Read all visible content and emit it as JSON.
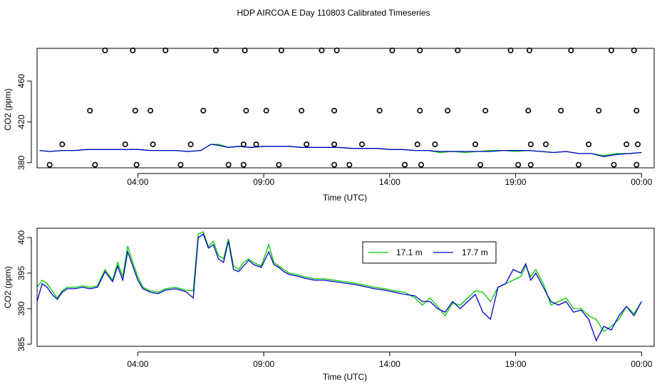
{
  "title": "HDP AIRCOA E  Day 110803  Calibrated Timeseries",
  "colors": {
    "series_17_1": "#00cc00",
    "series_17_7": "#0000cc",
    "markers": "#000000"
  },
  "chart_data": [
    {
      "type": "line",
      "panel": "top",
      "title": "HDP AIRCOA E  Day 110803  Calibrated Timeseries",
      "xlabel": "Time (UTC)",
      "ylabel": "CO2 (ppm)",
      "xlim": [
        0.0,
        24.5
      ],
      "ylim": [
        375,
        492
      ],
      "x_ticks": [
        4,
        9,
        14,
        19,
        24
      ],
      "x_tick_labels": [
        "04:00",
        "09:00",
        "14:00",
        "19:00",
        "00:00"
      ],
      "y_ticks": [
        380,
        420,
        460
      ],
      "y_tick_labels": [
        "380",
        "420",
        "460"
      ],
      "grid": false,
      "series": [
        {
          "name": "17.1 m",
          "color": "#00cc00",
          "x": [
            0.1,
            0.5,
            1.0,
            1.5,
            2.0,
            2.5,
            3.0,
            3.5,
            4.0,
            4.5,
            5.0,
            5.5,
            6.0,
            6.5,
            6.9,
            7.2,
            7.6,
            8.0,
            8.5,
            9.0,
            9.5,
            10.0,
            10.5,
            11.0,
            11.5,
            12.0,
            12.5,
            13.0,
            13.5,
            14.0,
            14.5,
            15.0,
            15.5,
            16.0,
            16.5,
            17.0,
            17.5,
            18.0,
            18.5,
            19.0,
            19.5,
            20.0,
            20.5,
            21.0,
            21.5,
            22.0,
            22.5,
            23.0,
            23.5,
            24.0
          ],
          "y": [
            392,
            391,
            392,
            392,
            393,
            393,
            393,
            393,
            393,
            392,
            392,
            392,
            391,
            392,
            398,
            398,
            395,
            396,
            395,
            396,
            396,
            396,
            395,
            395,
            395,
            395,
            394,
            394,
            394,
            393,
            393,
            392,
            392,
            390,
            391,
            390,
            391,
            392,
            392,
            391,
            392,
            391,
            390,
            391,
            389,
            389,
            387,
            389,
            389,
            390
          ]
        },
        {
          "name": "17.7 m",
          "color": "#0000cc",
          "x": [
            0.1,
            0.5,
            1.0,
            1.5,
            2.0,
            2.5,
            3.0,
            3.5,
            4.0,
            4.5,
            5.0,
            5.5,
            6.0,
            6.5,
            6.9,
            7.2,
            7.6,
            8.0,
            8.5,
            9.0,
            9.5,
            10.0,
            10.5,
            11.0,
            11.5,
            12.0,
            12.5,
            13.0,
            13.5,
            14.0,
            14.5,
            15.0,
            15.5,
            16.0,
            16.5,
            17.0,
            17.5,
            18.0,
            18.5,
            19.0,
            19.5,
            20.0,
            20.5,
            21.0,
            21.5,
            22.0,
            22.5,
            23.0,
            23.5,
            24.0
          ],
          "y": [
            392,
            391,
            392,
            392,
            393,
            393,
            393,
            393,
            393,
            392,
            392,
            392,
            391,
            392,
            398,
            397,
            395,
            396,
            395,
            396,
            396,
            396,
            395,
            395,
            395,
            395,
            394,
            394,
            394,
            393,
            393,
            392,
            392,
            391,
            391,
            391,
            391,
            391,
            392,
            392,
            392,
            391,
            390,
            391,
            389,
            389,
            386,
            388,
            389,
            390
          ]
        }
      ],
      "markers": {
        "color": "#000000",
        "x": [
          0.5,
          1.0,
          2.1,
          2.7,
          2.3,
          3.5,
          3.9,
          3.8,
          3.95,
          4.6,
          4.5,
          5.1,
          5.7,
          6.1,
          6.6,
          7.1,
          7.6,
          8.2,
          8.3,
          8.25,
          8.2,
          8.7,
          9.1,
          9.7,
          9.6,
          10.7,
          10.5,
          11.3,
          11.8,
          11.8,
          11.8,
          11.9,
          12.4,
          12.9,
          13.6,
          14.1,
          14.6,
          15.1,
          15.2,
          15.2,
          15.25,
          15.8,
          16.3,
          16.7,
          17.6,
          17.4,
          17.8,
          18.8,
          19.1,
          19.6,
          19.5,
          19.55,
          19.6,
          20.2,
          20.8,
          21.2,
          21.5,
          21.9,
          22.3,
          22.8,
          22.9,
          23.4,
          23.8,
          23.7,
          23.8,
          23.85
        ]
      }
    },
    {
      "type": "line",
      "panel": "bottom",
      "xlabel": "Time (UTC)",
      "ylabel": "CO2 (ppm)",
      "xlim": [
        0.0,
        24.5
      ],
      "ylim": [
        384.7,
        401.3
      ],
      "x_ticks": [
        4,
        9,
        14,
        19,
        24
      ],
      "x_tick_labels": [
        "04:00",
        "09:00",
        "14:00",
        "19:00",
        "00:00"
      ],
      "y_ticks": [
        385,
        390,
        395,
        400
      ],
      "y_tick_labels": [
        "385",
        "390",
        "395",
        "400"
      ],
      "grid": false,
      "legend_position": "top-center",
      "legend": [
        "17.1 m",
        "17.7 m"
      ],
      "series": [
        {
          "name": "17.1 m",
          "color": "#00cc00",
          "x": [
            0.0,
            0.2,
            0.4,
            0.6,
            0.8,
            1.0,
            1.2,
            1.5,
            1.8,
            2.1,
            2.4,
            2.7,
            3.0,
            3.2,
            3.4,
            3.6,
            3.8,
            4.0,
            4.2,
            4.5,
            4.8,
            5.1,
            5.5,
            5.9,
            6.2,
            6.4,
            6.6,
            6.8,
            7.0,
            7.2,
            7.4,
            7.6,
            7.8,
            8.0,
            8.2,
            8.4,
            8.6,
            8.9,
            9.2,
            9.4,
            9.6,
            9.8,
            10.0,
            10.3,
            10.6,
            11.0,
            11.4,
            11.8,
            12.2,
            12.6,
            13.0,
            13.4,
            13.8,
            14.2,
            14.6,
            15.0,
            15.3,
            15.6,
            15.9,
            16.2,
            16.5,
            16.8,
            17.1,
            17.4,
            17.7,
            18.0,
            18.3,
            18.6,
            18.9,
            19.2,
            19.4,
            19.6,
            19.8,
            20.1,
            20.4,
            20.7,
            21.0,
            21.3,
            21.6,
            21.9,
            22.2,
            22.5,
            22.8,
            23.1,
            23.4,
            23.7,
            24.0
          ],
          "y": [
            393.0,
            394.0,
            393.5,
            392.5,
            391.5,
            392.5,
            393.0,
            393.0,
            393.2,
            393.0,
            393.2,
            395.5,
            394.0,
            396.5,
            394.5,
            398.8,
            396.5,
            394.5,
            393.0,
            392.5,
            392.3,
            392.8,
            393.0,
            392.6,
            392.5,
            400.5,
            400.8,
            398.7,
            399.5,
            397.5,
            397.0,
            399.8,
            396.0,
            395.5,
            396.5,
            397.0,
            396.5,
            396.0,
            399.0,
            396.5,
            396.0,
            395.5,
            395.0,
            394.8,
            394.5,
            394.2,
            394.2,
            394.0,
            393.8,
            393.6,
            393.3,
            393.0,
            392.8,
            392.5,
            392.3,
            391.5,
            390.5,
            391.5,
            390.3,
            389.0,
            390.8,
            390.5,
            391.5,
            392.5,
            392.3,
            391.0,
            393.0,
            393.5,
            394.0,
            394.5,
            396.0,
            394.5,
            395.5,
            393.5,
            390.5,
            391.0,
            391.5,
            390.0,
            390.0,
            389.0,
            388.5,
            386.8,
            387.5,
            388.5,
            390.3,
            389.3,
            391.0
          ]
        },
        {
          "name": "17.7 m",
          "color": "#0000cc",
          "x": [
            0.0,
            0.2,
            0.4,
            0.6,
            0.8,
            1.0,
            1.2,
            1.5,
            1.8,
            2.1,
            2.4,
            2.7,
            3.0,
            3.2,
            3.4,
            3.6,
            3.8,
            4.0,
            4.2,
            4.5,
            4.8,
            5.1,
            5.5,
            5.9,
            6.2,
            6.4,
            6.6,
            6.8,
            7.0,
            7.2,
            7.4,
            7.6,
            7.8,
            8.0,
            8.2,
            8.4,
            8.6,
            8.9,
            9.2,
            9.4,
            9.6,
            9.8,
            10.0,
            10.3,
            10.6,
            11.0,
            11.4,
            11.8,
            12.2,
            12.6,
            13.0,
            13.4,
            13.8,
            14.2,
            14.6,
            15.0,
            15.3,
            15.6,
            15.9,
            16.2,
            16.5,
            16.8,
            17.1,
            17.4,
            17.7,
            18.0,
            18.3,
            18.6,
            18.9,
            19.2,
            19.4,
            19.6,
            19.8,
            20.1,
            20.4,
            20.7,
            21.0,
            21.3,
            21.6,
            21.9,
            22.2,
            22.5,
            22.8,
            23.1,
            23.4,
            23.7,
            24.0
          ],
          "y": [
            391.0,
            393.5,
            393.0,
            392.0,
            391.3,
            392.3,
            392.8,
            392.8,
            393.0,
            392.8,
            393.0,
            395.2,
            393.8,
            396.0,
            394.0,
            398.0,
            396.0,
            394.0,
            392.8,
            392.3,
            392.1,
            392.6,
            392.8,
            392.4,
            391.5,
            400.0,
            400.5,
            398.5,
            399.0,
            397.0,
            396.5,
            399.5,
            395.5,
            395.2,
            396.0,
            396.8,
            396.2,
            395.8,
            398.0,
            396.2,
            395.8,
            395.2,
            394.8,
            394.6,
            394.3,
            394.0,
            394.0,
            393.8,
            393.6,
            393.4,
            393.1,
            392.8,
            392.6,
            392.3,
            392.0,
            391.8,
            391.0,
            391.0,
            390.0,
            389.5,
            391.0,
            390.0,
            391.0,
            392.0,
            389.5,
            388.5,
            393.0,
            393.5,
            395.5,
            395.0,
            396.3,
            394.0,
            395.0,
            393.0,
            391.0,
            390.5,
            391.0,
            389.5,
            389.8,
            388.5,
            385.5,
            387.5,
            387.0,
            389.0,
            390.3,
            389.0,
            391.0
          ]
        }
      ]
    }
  ]
}
